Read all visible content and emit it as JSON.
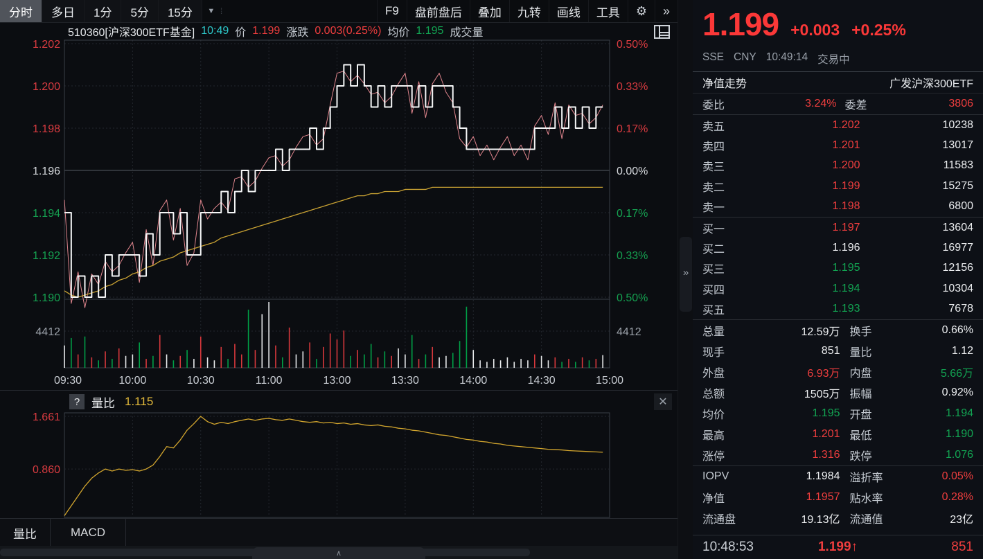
{
  "colors": {
    "up": "#ef3e3e",
    "down": "#12a452",
    "flat": "#eceef0",
    "axis_up": "#d83b40",
    "axis_down": "#15a050",
    "price_line": "#f5f6f7",
    "avg_line": "#c9a233",
    "nav_line": "#e0858d",
    "liangbi_line": "#d3a62e",
    "teal": "#2dc8ca",
    "big_red": "#fb3838",
    "grid": "#23272e",
    "grid_solid": "#565b63",
    "frame": "#3a3f47",
    "vol_up": "#d8383c",
    "vol_down": "#00a047",
    "vol_flat": "#e8eaec"
  },
  "toolbar": {
    "tabs": [
      {
        "label": "分时",
        "active": true
      },
      {
        "label": "多日",
        "active": false
      },
      {
        "label": "1分",
        "active": false
      },
      {
        "label": "5分",
        "active": false
      },
      {
        "label": "15分",
        "active": false
      }
    ],
    "dropdown_icon": "▼",
    "dots_icon": "⁞",
    "right_items": [
      "F9",
      "盘前盘后",
      "叠加",
      "九转",
      "画线",
      "工具"
    ],
    "gear_icon": "⚙",
    "more_icon": "»"
  },
  "chart_header": {
    "symbol": "510360[沪深300ETF基金]",
    "time": "10:49",
    "price_label": "价",
    "price": "1.199",
    "change_label": "涨跌",
    "change": "0.003(0.25%)",
    "avg_label": "均价",
    "avg": "1.195",
    "volume_label": "成交量"
  },
  "indicator": {
    "help_icon": "?",
    "name": "量比",
    "value": "1.115",
    "close_icon": "✕",
    "axis_labels": [
      "1.661",
      "0.860"
    ]
  },
  "bottom_tabs": [
    "量比",
    "MACD"
  ],
  "bottom": {
    "handle_icon": "∧"
  },
  "divider": {
    "handle_icon": "»"
  },
  "chart_data": [
    {
      "type": "line",
      "title": "分时走势 510360 沪深300ETF基金",
      "x_ticks": [
        "09:30",
        "10:00",
        "10:30",
        "11:00",
        "13:00",
        "13:30",
        "14:00",
        "14:30",
        "15:00"
      ],
      "minutes_total": 240,
      "minutes_plotted": 80,
      "preclose": 1.196,
      "ylim": [
        1.19,
        1.202
      ],
      "y_ticks_left": [
        {
          "label": "1.202",
          "cls": "up"
        },
        {
          "label": "1.200",
          "cls": "up"
        },
        {
          "label": "1.198",
          "cls": "up"
        },
        {
          "label": "1.196",
          "cls": "flat"
        },
        {
          "label": "1.194",
          "cls": "down"
        },
        {
          "label": "1.192",
          "cls": "down"
        },
        {
          "label": "1.190",
          "cls": "down"
        }
      ],
      "y_ticks_right": [
        {
          "label": "0.50%",
          "cls": "up"
        },
        {
          "label": "0.33%",
          "cls": "up"
        },
        {
          "label": "0.17%",
          "cls": "up"
        },
        {
          "label": "0.00%",
          "cls": "flat"
        },
        {
          "label": "0.17%",
          "cls": "down"
        },
        {
          "label": "0.33%",
          "cls": "down"
        },
        {
          "label": "0.50%",
          "cls": "down"
        }
      ],
      "series": [
        {
          "name": "价格",
          "values": [
            1.194,
            1.19,
            1.191,
            1.19,
            1.191,
            1.19,
            1.192,
            1.191,
            1.192,
            1.192,
            1.192,
            1.191,
            1.193,
            1.192,
            1.194,
            1.194,
            1.193,
            1.194,
            1.192,
            1.192,
            1.194,
            1.194,
            1.194,
            1.195,
            1.194,
            1.195,
            1.196,
            1.195,
            1.196,
            1.196,
            1.196,
            1.197,
            1.196,
            1.197,
            1.197,
            1.197,
            1.198,
            1.197,
            1.198,
            1.199,
            1.2,
            1.201,
            1.2,
            1.201,
            1.2,
            1.199,
            1.2,
            1.199,
            1.2,
            1.2,
            1.2,
            1.199,
            1.2,
            1.199,
            1.2,
            1.2,
            1.2,
            1.199,
            1.198,
            1.197,
            1.197,
            1.197,
            1.197,
            1.197,
            1.197,
            1.197,
            1.197,
            1.197,
            1.197,
            1.198,
            1.198,
            1.198,
            1.199,
            1.198,
            1.199,
            1.198,
            1.199,
            1.198,
            1.199,
            1.199
          ]
        },
        {
          "name": "净值",
          "values": [
            1.1946,
            1.1897,
            1.1912,
            1.1895,
            1.1911,
            1.1906,
            1.1917,
            1.1912,
            1.1915,
            1.1921,
            1.1926,
            1.1907,
            1.1932,
            1.1915,
            1.1941,
            1.1946,
            1.1927,
            1.1942,
            1.1915,
            1.1921,
            1.1946,
            1.1937,
            1.1942,
            1.1945,
            1.1941,
            1.1956,
            1.1957,
            1.1952,
            1.1955,
            1.1961,
            1.1966,
            1.1967,
            1.1962,
            1.1965,
            1.1971,
            1.1976,
            1.1977,
            1.1972,
            1.1975,
            1.1991,
            1.2006,
            1.2007,
            1.2002,
            1.2005,
            1.2001,
            1.1996,
            1.1997,
            1.1992,
            1.1995,
            1.2001,
            1.2006,
            1.1987,
            1.2002,
            1.1985,
            1.2001,
            1.2006,
            1.1997,
            1.1992,
            1.1975,
            1.1971,
            1.1976,
            1.1967,
            1.1972,
            1.1965,
            1.1971,
            1.1976,
            1.1967,
            1.1972,
            1.1965,
            1.1981,
            1.1986,
            1.1977,
            1.1992,
            1.1975,
            1.1991,
            1.1986,
            1.1987,
            1.1982,
            1.1985,
            1.1991
          ]
        },
        {
          "name": "均价",
          "values": [
            1.1903,
            1.1901,
            1.19,
            1.1901,
            1.1902,
            1.1903,
            1.1905,
            1.1906,
            1.1908,
            1.1909,
            1.1911,
            1.1912,
            1.1914,
            1.1915,
            1.1917,
            1.1918,
            1.1919,
            1.1921,
            1.1922,
            1.1923,
            1.1924,
            1.1925,
            1.1926,
            1.1928,
            1.1929,
            1.193,
            1.1931,
            1.1932,
            1.1933,
            1.1934,
            1.1935,
            1.1936,
            1.1937,
            1.1938,
            1.1939,
            1.194,
            1.1941,
            1.1942,
            1.1943,
            1.1944,
            1.1945,
            1.1946,
            1.1947,
            1.1948,
            1.1948,
            1.1949,
            1.1949,
            1.195,
            1.195,
            1.195,
            1.1951,
            1.1951,
            1.1951,
            1.1951,
            1.1952,
            1.1952,
            1.1952,
            1.1952,
            1.1952,
            1.1952,
            1.1952,
            1.1952,
            1.1952,
            1.1952,
            1.1952,
            1.1952,
            1.1952,
            1.1952,
            1.1952,
            1.1952,
            1.1952,
            1.1952,
            1.1952,
            1.1952,
            1.1952,
            1.1952,
            1.1952,
            1.1952,
            1.1952,
            1.1952
          ]
        }
      ]
    },
    {
      "type": "bar",
      "title": "成交量",
      "max_label": "4412",
      "color_rule": "up=red,down=green,flat=white",
      "values": [
        1500,
        2000,
        900,
        2100,
        700,
        500,
        1100,
        600,
        1300,
        800,
        900,
        1700,
        600,
        800,
        2200,
        900,
        500,
        800,
        1200,
        600,
        2100,
        700,
        500,
        1400,
        600,
        1600,
        900,
        3900,
        1200,
        3600,
        4412,
        1500,
        700,
        2700,
        900,
        1100,
        1700,
        600,
        1400,
        2300,
        1900,
        2500,
        800,
        1200,
        900,
        1600,
        700,
        1100,
        800,
        1300,
        900,
        2200,
        600,
        900,
        1400,
        700,
        800,
        1000,
        1800,
        4100,
        1200,
        500,
        400,
        600,
        500,
        700,
        400,
        600,
        500,
        900,
        800,
        500,
        700,
        400,
        600,
        400,
        700,
        500,
        600,
        851
      ]
    },
    {
      "type": "line",
      "title": "量比",
      "current": 1.115,
      "y_ticks": [
        1.661,
        0.86
      ],
      "values": [
        0.15,
        0.3,
        0.45,
        0.6,
        0.72,
        0.8,
        0.86,
        0.83,
        0.86,
        0.84,
        0.85,
        0.83,
        0.86,
        0.92,
        1.05,
        1.2,
        1.18,
        1.3,
        1.45,
        1.55,
        1.66,
        1.58,
        1.54,
        1.57,
        1.55,
        1.58,
        1.6,
        1.62,
        1.6,
        1.62,
        1.63,
        1.61,
        1.6,
        1.62,
        1.6,
        1.58,
        1.57,
        1.58,
        1.56,
        1.57,
        1.55,
        1.56,
        1.54,
        1.55,
        1.53,
        1.52,
        1.53,
        1.51,
        1.5,
        1.48,
        1.47,
        1.45,
        1.44,
        1.42,
        1.4,
        1.38,
        1.37,
        1.35,
        1.33,
        1.31,
        1.3,
        1.28,
        1.27,
        1.25,
        1.24,
        1.22,
        1.21,
        1.2,
        1.19,
        1.18,
        1.17,
        1.16,
        1.155,
        1.15,
        1.14,
        1.135,
        1.13,
        1.125,
        1.12,
        1.115
      ]
    }
  ],
  "right_panel": {
    "price": "1.199",
    "change": "+0.003",
    "change_pct": "+0.25%",
    "exchange": "SSE",
    "currency": "CNY",
    "time": "10:49:14",
    "status": "交易中",
    "nav_row": {
      "left": "净值走势",
      "right": "广发沪深300ETF"
    },
    "weibi": {
      "label1": "委比",
      "value1": "3.24%",
      "label2": "委差",
      "value2": "3806"
    },
    "asks": [
      {
        "label": "卖五",
        "price": "1.202",
        "pc": "up",
        "vol": "10238"
      },
      {
        "label": "卖四",
        "price": "1.201",
        "pc": "up",
        "vol": "13017"
      },
      {
        "label": "卖三",
        "price": "1.200",
        "pc": "up",
        "vol": "11583"
      },
      {
        "label": "卖二",
        "price": "1.199",
        "pc": "up",
        "vol": "15275"
      },
      {
        "label": "卖一",
        "price": "1.198",
        "pc": "up",
        "vol": "6800"
      }
    ],
    "bids": [
      {
        "label": "买一",
        "price": "1.197",
        "pc": "up",
        "vol": "13604"
      },
      {
        "label": "买二",
        "price": "1.196",
        "pc": "flat",
        "vol": "16977"
      },
      {
        "label": "买三",
        "price": "1.195",
        "pc": "down",
        "vol": "12156"
      },
      {
        "label": "买四",
        "price": "1.194",
        "pc": "down",
        "vol": "10304"
      },
      {
        "label": "买五",
        "price": "1.193",
        "pc": "down",
        "vol": "7678"
      }
    ],
    "stats": [
      {
        "l1": "总量",
        "v1": "12.59万",
        "c1": "flat",
        "l2": "换手",
        "v2": "0.66%",
        "c2": "flat"
      },
      {
        "l1": "现手",
        "v1": "851",
        "c1": "flat",
        "l2": "量比",
        "v2": "1.12",
        "c2": "flat"
      },
      {
        "l1": "外盘",
        "v1": "6.93万",
        "c1": "up",
        "l2": "内盘",
        "v2": "5.66万",
        "c2": "down"
      },
      {
        "l1": "总额",
        "v1": "1505万",
        "c1": "flat",
        "l2": "振幅",
        "v2": "0.92%",
        "c2": "flat"
      },
      {
        "l1": "均价",
        "v1": "1.195",
        "c1": "down",
        "l2": "开盘",
        "v2": "1.194",
        "c2": "down"
      },
      {
        "l1": "最高",
        "v1": "1.201",
        "c1": "up",
        "l2": "最低",
        "v2": "1.190",
        "c2": "down"
      },
      {
        "l1": "涨停",
        "v1": "1.316",
        "c1": "up",
        "l2": "跌停",
        "v2": "1.076",
        "c2": "down"
      }
    ],
    "stats2": [
      {
        "l1": "IOPV",
        "v1": "1.1984",
        "c1": "flat",
        "l2": "溢折率",
        "v2": "0.05%",
        "c2": "up"
      },
      {
        "l1": "净值",
        "v1": "1.1957",
        "c1": "up",
        "l2": "贴水率",
        "v2": "0.28%",
        "c2": "up"
      },
      {
        "l1": "流通盘",
        "v1": "19.13亿",
        "c1": "flat",
        "l2": "流通值",
        "v2": "23亿",
        "c2": "flat"
      }
    ],
    "ticker": {
      "time": "10:48:53",
      "price": "1.199",
      "arrow": "↑",
      "volume": "851"
    }
  }
}
